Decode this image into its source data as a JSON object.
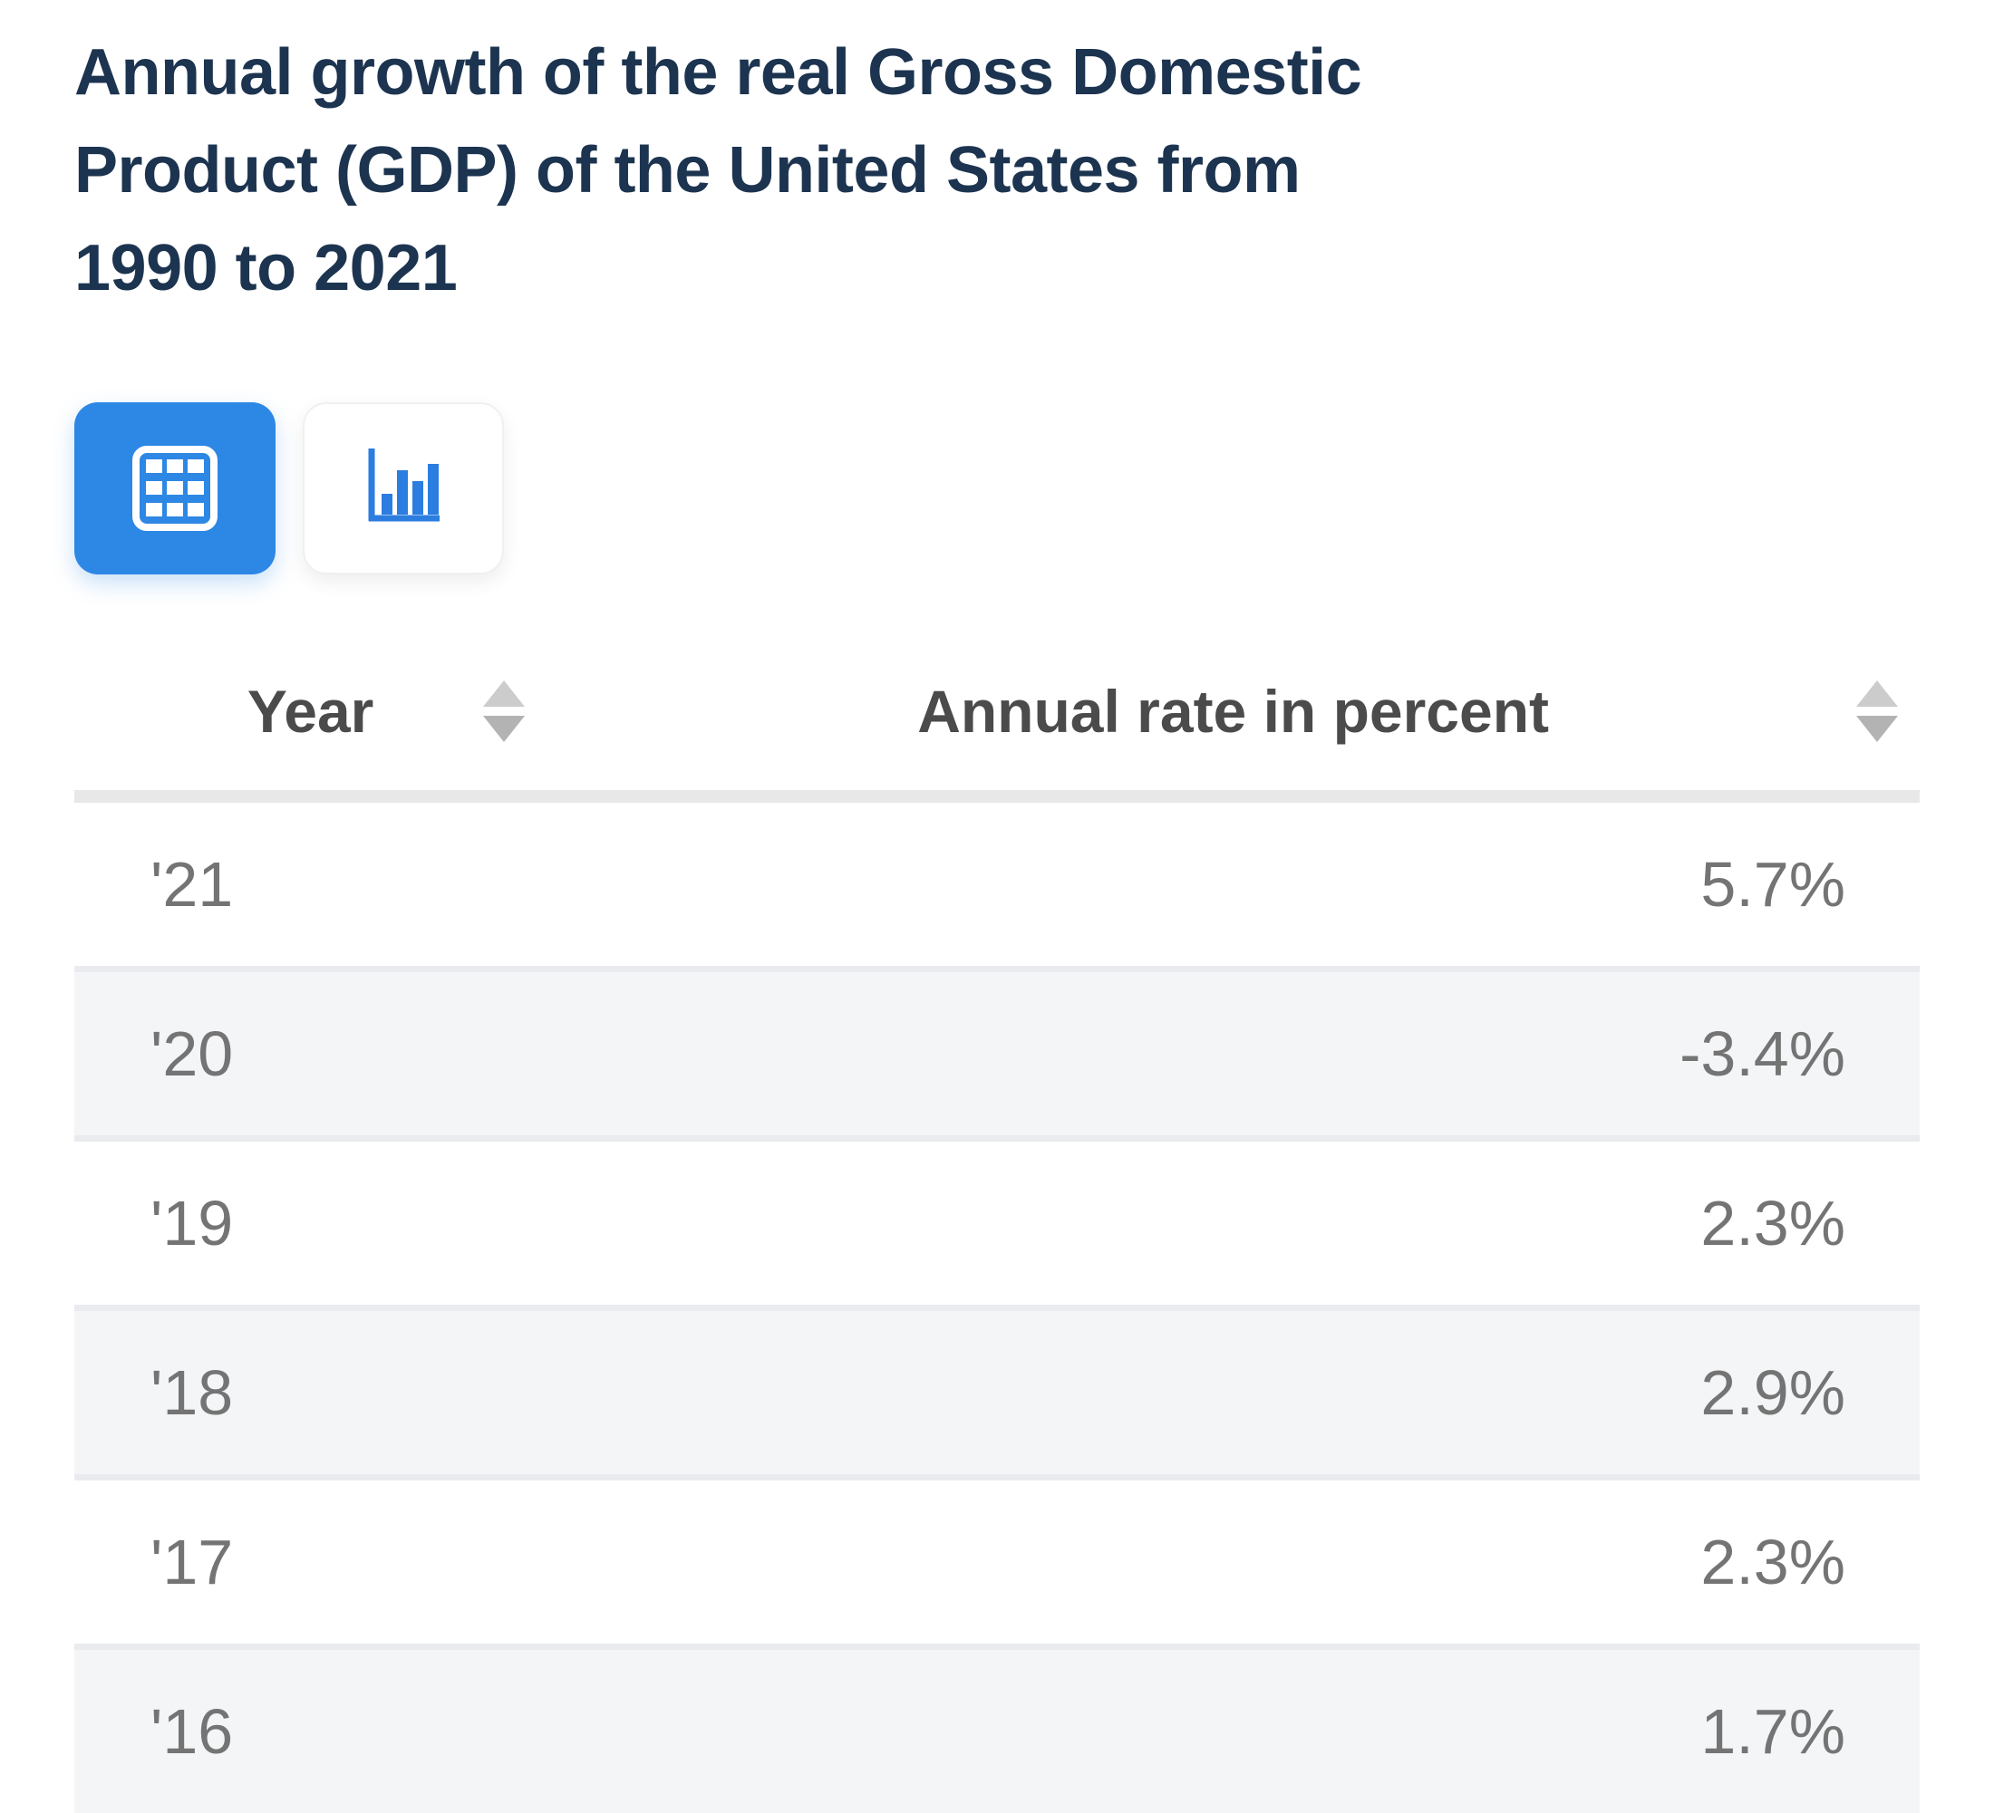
{
  "title": "Annual growth of the real Gross Domestic Product (GDP) of the United States from 1990 to 2021",
  "toolbar": {
    "table_view_selected": true,
    "chart_view_selected": false
  },
  "colors": {
    "accent_blue": "#2d87e4",
    "icon_blue": "#2b7de0",
    "title_navy": "#1c3450",
    "header_text": "#4b4b4b",
    "row_text": "#747474",
    "row_alt_bg": "#f3f5f7",
    "divider": "#e9ebee",
    "header_bar": "#e8e8e8",
    "sort_arrow_up": "#cccccc",
    "sort_arrow_down": "#b3b3b3"
  },
  "table": {
    "columns": [
      {
        "label": "Year",
        "sortable": true
      },
      {
        "label": "Annual rate in percent",
        "sortable": true
      }
    ],
    "rows": [
      {
        "year": "'21",
        "value": "5.7%"
      },
      {
        "year": "'20",
        "value": "-3.4%"
      },
      {
        "year": "'19",
        "value": "2.3%"
      },
      {
        "year": "'18",
        "value": "2.9%"
      },
      {
        "year": "'17",
        "value": "2.3%"
      },
      {
        "year": "'16",
        "value": "1.7%"
      }
    ]
  },
  "chart_data": {
    "type": "table",
    "title": "Annual growth of the real Gross Domestic Product (GDP) of the United States from 1990 to 2021",
    "columns": [
      "Year",
      "Annual rate in percent"
    ],
    "categories": [
      "2021",
      "2020",
      "2019",
      "2018",
      "2017",
      "2016"
    ],
    "values": [
      5.7,
      -3.4,
      2.3,
      2.9,
      2.3,
      1.7
    ],
    "unit": "percent",
    "note": "table view of statistic; years shown as '21 through '16, more rows cut off at bottom edge"
  }
}
